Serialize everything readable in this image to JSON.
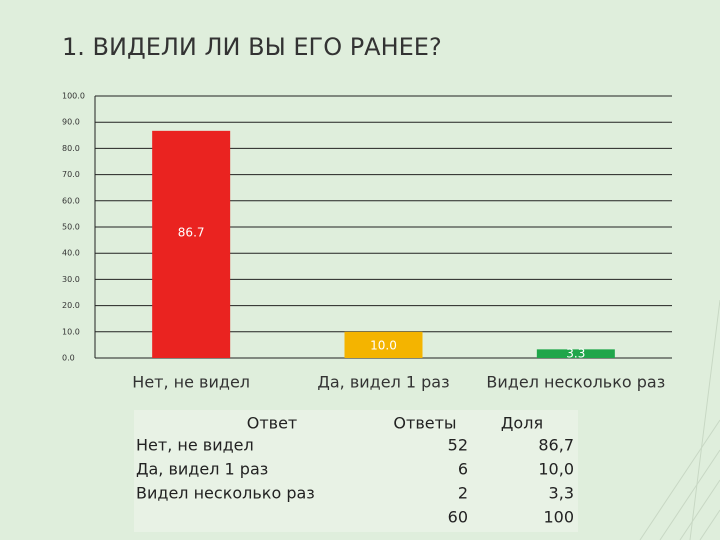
{
  "chart_data": {
    "type": "bar",
    "title": "1. ВИДЕЛИ ЛИ ВЫ ЕГО РАНЕЕ?",
    "categories": [
      "Нет, не видел",
      "Да, видел 1 раз",
      "Видел несколько раз"
    ],
    "values": [
      86.7,
      10.0,
      3.3
    ],
    "value_labels": [
      "86.7",
      "10.0",
      "3.3"
    ],
    "colors": [
      "#ea2320",
      "#f4b400",
      "#1fa64a"
    ],
    "ylim": [
      0,
      100
    ],
    "yticks": [
      {
        "value": 0,
        "label": "0.0"
      },
      {
        "value": 10,
        "label": "10.0"
      },
      {
        "value": 20,
        "label": "20.0"
      },
      {
        "value": 30,
        "label": "30.0"
      },
      {
        "value": 40,
        "label": "40.0"
      },
      {
        "value": 50,
        "label": "50.0"
      },
      {
        "value": 60,
        "label": "60.0"
      },
      {
        "value": 70,
        "label": "70.0"
      },
      {
        "value": 80,
        "label": "80.0"
      },
      {
        "value": 90,
        "label": "90.0"
      },
      {
        "value": 100,
        "label": "100.0"
      }
    ],
    "grid": true
  },
  "table": {
    "header": [
      "Ответ",
      "Ответы",
      "Доля"
    ],
    "rows": [
      [
        "Нет, не видел",
        "52",
        "86,7"
      ],
      [
        "Да, видел 1 раз",
        "6",
        "10,0"
      ],
      [
        "Видел несколько раз",
        "2",
        "3,3"
      ]
    ],
    "total": [
      "60",
      "100"
    ]
  }
}
